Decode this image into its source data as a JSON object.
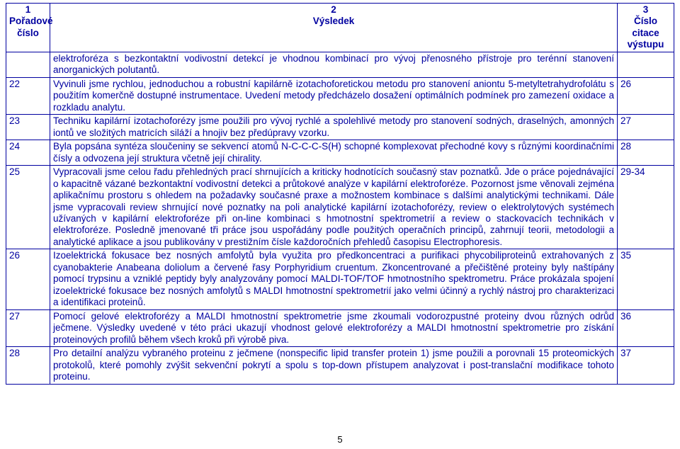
{
  "header": {
    "col1_num": "1",
    "col1_label": "Pořadové číslo",
    "col2_num": "2",
    "col2_label": "Výsledek",
    "col3_num": "3",
    "col3_label": "Číslo citace výstupu"
  },
  "rows": [
    {
      "num": "",
      "result": "elektroforéza s bezkontaktní vodivostní detekcí je vhodnou kombinací pro vývoj přenosného přístroje pro terénní stanovení anorganických polutantů.",
      "cite": ""
    },
    {
      "num": "22",
      "result": "Vyvinuli jsme rychlou, jednoduchou a robustní kapilárně izotachoforetickou metodu pro stanovení aniontu 5-metyltetrahydrofolátu s použitím komerčně dostupné instrumentace. Uvedení metody předcházelo dosažení optimálních podmínek pro zamezení oxidace a rozkladu analytu.",
      "cite": "26"
    },
    {
      "num": "23",
      "result": "Techniku kapilární izotachoforézy jsme použili pro vývoj rychlé a spolehlivé metody pro stanovení sodných, draselných, amonných iontů ve složitých matricích siláží a hnojiv bez předúpravy vzorku.",
      "cite": "27"
    },
    {
      "num": "24",
      "result": "Byla popsána syntéza sloučeniny se sekvencí atomů N-C-C-C-S(H) schopné komplexovat přechodné kovy s různými koordinačními čísly a odvozena její struktura včetně její chirality.",
      "cite": "28"
    },
    {
      "num": "25",
      "result": "Vypracovali jsme celou řadu přehledných prací shrnujících a kriticky hodnotících současný stav poznatků. Jde o práce pojednávající o kapacitně vázané bezkontaktní vodivostní detekci a průtokové analýze v kapilární elektroforéze. Pozornost jsme věnovali zejména aplikačnímu prostoru s ohledem na požadavky současné praxe a možnostem kombinace s dalšími analytickými technikami. Dále jsme vypracovali review shrnující nové poznatky na poli analytické kapilární izotachoforézy, review o elektrolytových systémech užívaných v kapilární elektroforéze při on-line kombinaci s hmotnostní spektrometrií a review o stackovacích technikách v elektroforéze. Posledně jmenované tři práce jsou uspořádány podle použitých operačních principů, zahrnují teorii, metodologii a analytické aplikace a jsou publikovány v prestižním čísle každoročních přehledů časopisu Electrophoresis.",
      "cite": "29-34"
    },
    {
      "num": "26",
      "result": "Izoelektrická fokusace bez nosných amfolytů byla využita pro předkoncentraci a purifikaci phycobiliproteinů extrahovaných z cyanobakterie Anabeana doliolum a červené řasy Porphyridium cruentum. Zkoncentrované a přečištěné proteiny byly naštípány pomocí trypsinu a vzniklé peptidy byly analyzovány pomocí MALDI-TOF/TOF hmotnostního spektrometru. Práce prokázala spojení izoelektrické fokusace bez nosných amfolytů s MALDI hmotnostní spektrometrií jako velmi účinný a rychlý nástroj pro charakterizaci a identifikaci proteinů.",
      "cite": "35"
    },
    {
      "num": "27",
      "result": "Pomocí gelové elektroforézy a MALDI hmotnostní spektrometrie jsme zkoumali vodorozpustné proteiny dvou různých odrůd ječmene. Výsledky uvedené v této práci ukazují vhodnost gelové elektroforézy a MALDI hmotnostní spektrometrie pro získání proteinových profilů během všech kroků při výrobě piva.",
      "cite": "36"
    },
    {
      "num": "28",
      "result": "Pro detailní analýzu vybraného proteinu z ječmene (nonspecific lipid transfer protein 1) jsme použili a porovnali 15 proteomických protokolů, které pomohly zvýšit sekvenční pokrytí a spolu s top-down přístupem analyzovat i post-translační modifikace tohoto proteinu.",
      "cite": "37"
    }
  ],
  "page_number": "5",
  "style": {
    "text_color": "#0000a0",
    "page_num_color": "#000000",
    "border_color": "#0000a0",
    "font_family": "Arial",
    "font_size_pt": 10,
    "background": "#ffffff"
  }
}
